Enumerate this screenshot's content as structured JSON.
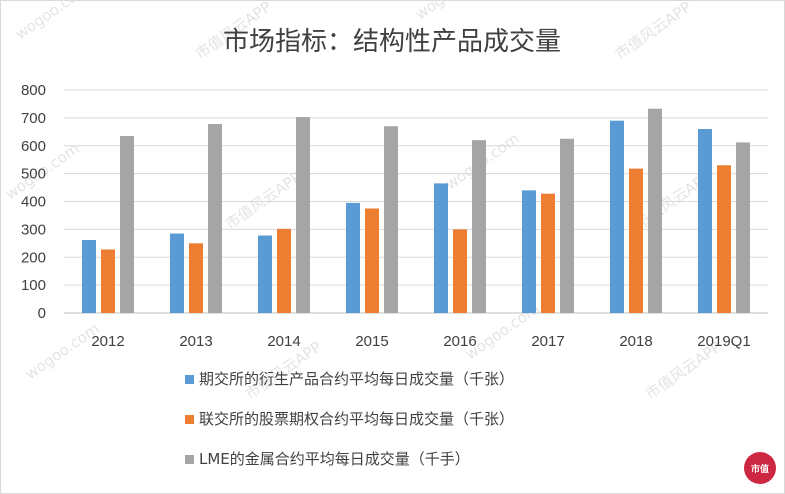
{
  "chart_data": {
    "type": "bar",
    "title": "市场指标：结构性产品成交量",
    "categories": [
      "2012",
      "2013",
      "2014",
      "2015",
      "2016",
      "2017",
      "2018",
      "2019Q1"
    ],
    "series": [
      {
        "name": "期交所的衍生产品合约平均每日成交量（千张）",
        "color": "#5b9bd5",
        "values": [
          262,
          285,
          278,
          395,
          465,
          440,
          690,
          660
        ]
      },
      {
        "name": "联交所的股票期权合约平均每日成交量（千张）",
        "color": "#ed7d31",
        "values": [
          228,
          250,
          302,
          375,
          300,
          428,
          518,
          530
        ]
      },
      {
        "name": "LME的金属合约平均每日成交量（千手）",
        "color": "#a5a5a5",
        "values": [
          635,
          678,
          703,
          670,
          620,
          625,
          733,
          612
        ]
      }
    ],
    "yticks": [
      "0",
      "100",
      "200",
      "300",
      "400",
      "500",
      "600",
      "700",
      "800"
    ],
    "ylim": [
      0,
      800
    ],
    "grid": true,
    "legend_position": "bottom"
  },
  "watermark": {
    "texts": [
      "wogoo.com",
      "市值风云APP"
    ],
    "seal_text": "市值"
  }
}
